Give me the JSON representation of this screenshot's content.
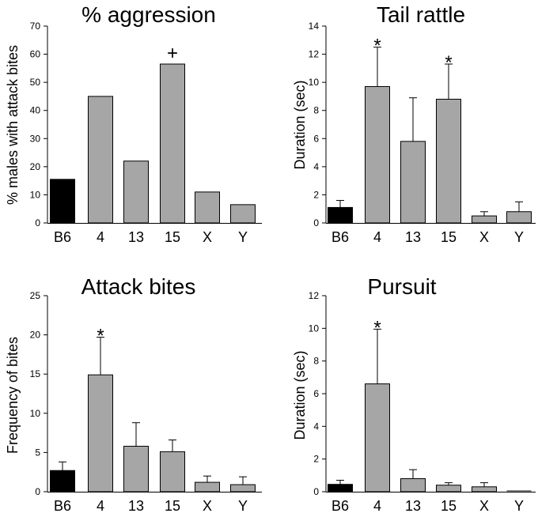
{
  "colors": {
    "control": "#000000",
    "strain": "#a6a6a6"
  },
  "chart_data": [
    {
      "type": "bar",
      "title": "% aggression",
      "xlabel": "",
      "ylabel": "% males with attack bites",
      "categories": [
        "B6",
        "4",
        "13",
        "15",
        "X",
        "Y"
      ],
      "values": [
        15.5,
        45,
        22,
        56.5,
        11,
        6.5
      ],
      "errors": null,
      "ylim": [
        0,
        70
      ],
      "yticks": [
        "0",
        "10",
        "20",
        "30",
        "40",
        "50",
        "60",
        "70"
      ],
      "annotations": [
        "",
        "",
        "",
        "+",
        "",
        ""
      ]
    },
    {
      "type": "bar",
      "title": "Tail rattle",
      "xlabel": "",
      "ylabel": "Duration (sec)",
      "categories": [
        "B6",
        "4",
        "13",
        "15",
        "X",
        "Y"
      ],
      "values": [
        1.1,
        9.7,
        5.8,
        8.8,
        0.5,
        0.8
      ],
      "errors": [
        0.5,
        2.8,
        3.1,
        2.5,
        0.3,
        0.7
      ],
      "ylim": [
        0,
        14
      ],
      "yticks": [
        "0",
        "2",
        "4",
        "6",
        "8",
        "10",
        "12",
        "14"
      ],
      "annotations": [
        "",
        "*",
        "",
        "*",
        "",
        ""
      ]
    },
    {
      "type": "bar",
      "title": "Attack bites",
      "xlabel": "",
      "ylabel": "Frequency of bites",
      "categories": [
        "B6",
        "4",
        "13",
        "15",
        "X",
        "Y"
      ],
      "values": [
        2.7,
        14.9,
        5.8,
        5.1,
        1.2,
        0.9
      ],
      "errors": [
        1.1,
        4.8,
        3.0,
        1.5,
        0.8,
        1.0
      ],
      "ylim": [
        0,
        25
      ],
      "yticks": [
        "0",
        "5",
        "10",
        "15",
        "20",
        "25"
      ],
      "annotations": [
        "",
        "*",
        "",
        "",
        "",
        ""
      ]
    },
    {
      "type": "bar",
      "title": "Pursuit",
      "xlabel": "",
      "ylabel": "Duration (sec)",
      "categories": [
        "B6",
        "4",
        "13",
        "15",
        "X",
        "Y"
      ],
      "values": [
        0.45,
        6.6,
        0.8,
        0.4,
        0.3,
        0.0
      ],
      "errors": [
        0.25,
        3.35,
        0.55,
        0.15,
        0.25,
        0.0
      ],
      "ylim": [
        0,
        12
      ],
      "yticks": [
        "0",
        "2",
        "4",
        "6",
        "8",
        "10",
        "12"
      ],
      "annotations": [
        "",
        "*",
        "",
        "",
        "",
        ""
      ]
    }
  ]
}
